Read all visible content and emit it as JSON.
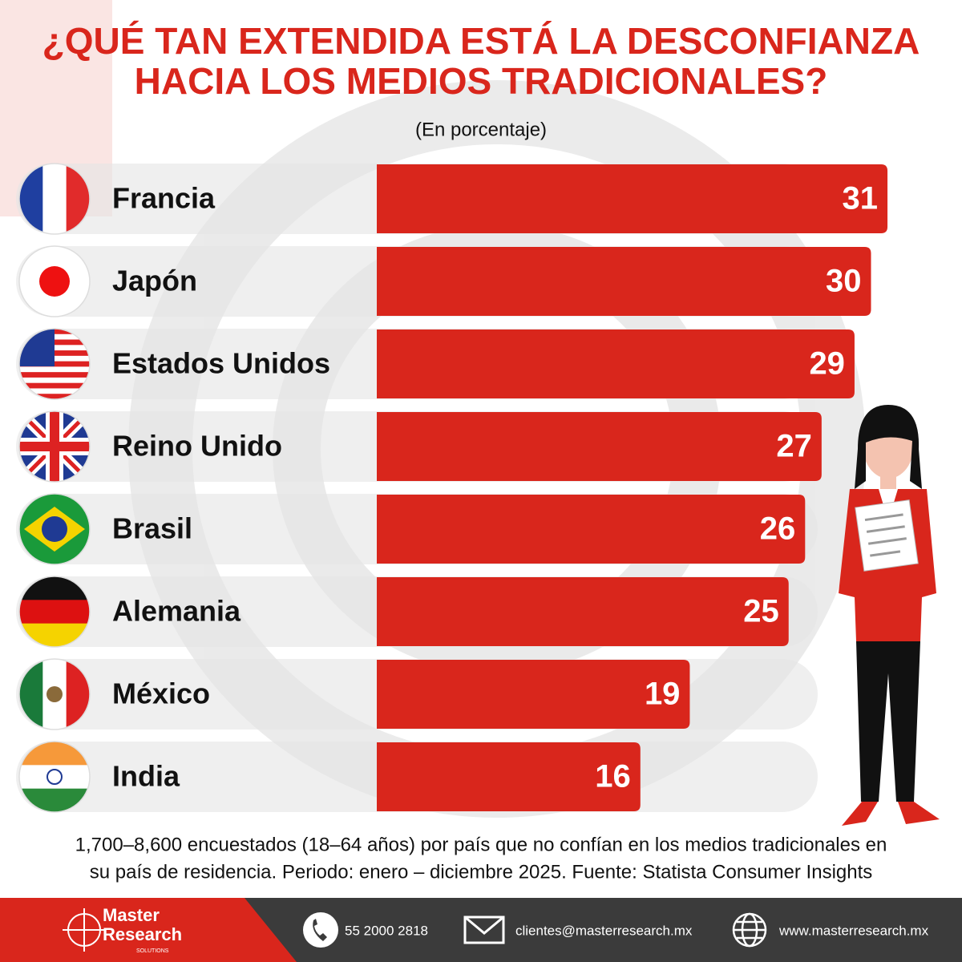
{
  "chart_data": {
    "type": "bar",
    "orientation": "horizontal",
    "title": [
      "¿QUÉ TAN EXTENDIDA ESTÁ LA DESCONFIANZA",
      "HACIA LOS MEDIOS TRADICIONALES?"
    ],
    "subtitle": "(En porcentaje)",
    "categories": [
      "Francia",
      "Japón",
      "Estados Unidos",
      "Reino Unido",
      "Brasil",
      "Alemania",
      "México",
      "India"
    ],
    "values": [
      31,
      30,
      29,
      27,
      26,
      25,
      19,
      16
    ],
    "color": "#d9261c",
    "note": [
      "1,700–8,600 encuestados (18–64 años) por país que no confían en los medios tradicionales en",
      "su país de residencia. Periodo: enero – diciembre 2025. Fuente: Statista Consumer Insights"
    ]
  },
  "footer": {
    "logo": [
      "Master",
      "Research"
    ],
    "logo_sub": "SOLUTIONS",
    "phone": "55 2000 2818",
    "email": "clientes@masterresearch.mx",
    "web": "www.masterresearch.mx"
  }
}
